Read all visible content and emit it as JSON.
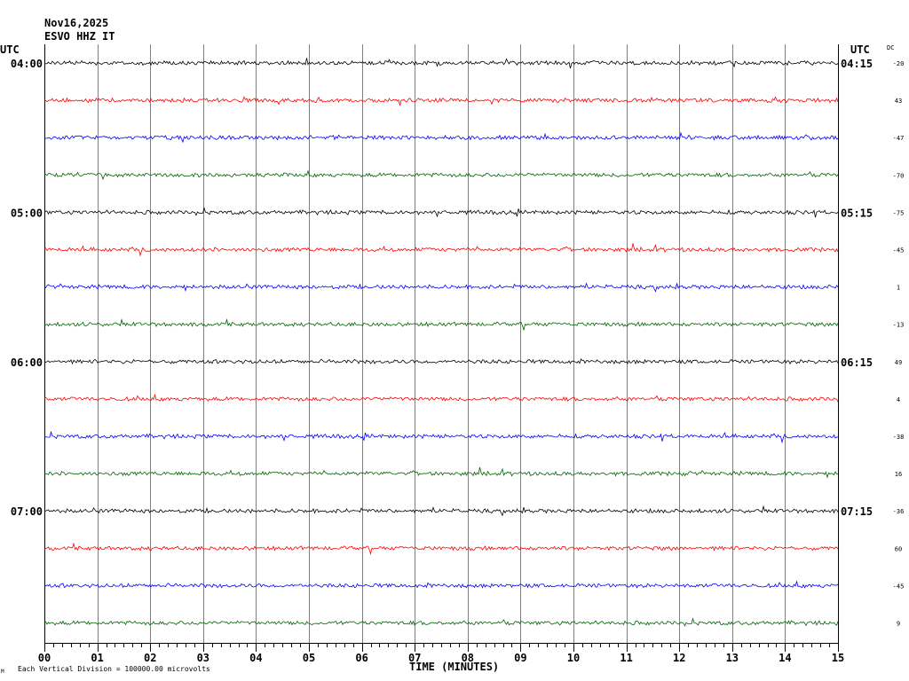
{
  "header": {
    "date": "Nov16,2025",
    "station": "ESVO HHZ IT",
    "utc_left": "UTC",
    "utc_right": "UTC",
    "dc": "DC"
  },
  "footer": {
    "xlabel": "TIME (MINUTES)",
    "note": "Each Vertical Division = 100000.00 microvolts",
    "corner": "M"
  },
  "colors": {
    "trace_cycle": [
      "#000000",
      "#ff0000",
      "#0000ff",
      "#006400"
    ],
    "grid": "#808080",
    "axis": "#000000"
  },
  "chart_data": {
    "type": "line",
    "title": "Nov16,2025 ESVO HHZ IT",
    "xlabel": "TIME (MINUTES)",
    "xlim": [
      0,
      15
    ],
    "x_ticks": [
      "00",
      "01",
      "02",
      "03",
      "04",
      "05",
      "06",
      "07",
      "08",
      "09",
      "10",
      "11",
      "12",
      "13",
      "14",
      "15"
    ],
    "left_hour_labels": [
      {
        "row": 0,
        "text": "04:00"
      },
      {
        "row": 4,
        "text": "05:00"
      },
      {
        "row": 8,
        "text": "06:00"
      },
      {
        "row": 12,
        "text": "07:00"
      }
    ],
    "right_hour_labels": [
      {
        "row": 0,
        "text": "04:15"
      },
      {
        "row": 4,
        "text": "05:15"
      },
      {
        "row": 8,
        "text": "06:15"
      },
      {
        "row": 12,
        "text": "07:15"
      }
    ],
    "dc_offsets": [
      "-20",
      "43",
      "-47",
      "-70",
      "-75",
      "-45",
      "1",
      "-13",
      "49",
      "4",
      "-38",
      "16",
      "-36",
      "60",
      "-45",
      "9"
    ],
    "rows": 16,
    "row_minutes": 15,
    "start_time_utc": "04:00",
    "vertical_division_microvolts": 100000.0
  }
}
